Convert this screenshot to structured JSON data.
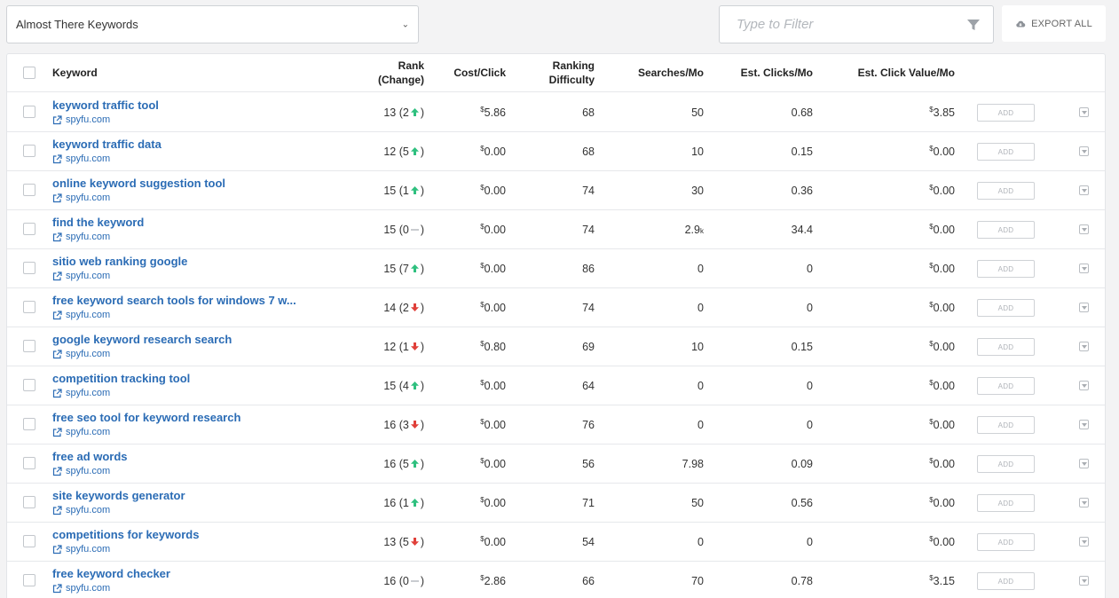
{
  "toolbar": {
    "dropdown_value": "Almost There Keywords",
    "filter_placeholder": "Type to Filter",
    "export_label": "EXPORT ALL"
  },
  "columns": {
    "keyword": "Keyword",
    "rank_line1": "Rank",
    "rank_line2": "(Change)",
    "cost": "Cost/Click",
    "difficulty_line1": "Ranking",
    "difficulty_line2": "Difficulty",
    "searches": "Searches/Mo",
    "clicks": "Est. Clicks/Mo",
    "click_value": "Est. Click Value/Mo"
  },
  "add_label": "ADD",
  "currency_symbol": "$",
  "colors": {
    "up": "#2fc07f",
    "down": "#e0403a",
    "link": "#2b6cb5"
  },
  "rows": [
    {
      "keyword": "keyword traffic tool",
      "site": "spyfu.com",
      "rank": "13",
      "change": "2",
      "dir": "up",
      "cost": "5.86",
      "difficulty": "68",
      "searches": "50",
      "searches_suffix": "",
      "clicks": "0.68",
      "value": "3.85"
    },
    {
      "keyword": "keyword traffic data",
      "site": "spyfu.com",
      "rank": "12",
      "change": "5",
      "dir": "up",
      "cost": "0.00",
      "difficulty": "68",
      "searches": "10",
      "searches_suffix": "",
      "clicks": "0.15",
      "value": "0.00"
    },
    {
      "keyword": "online keyword suggestion tool",
      "site": "spyfu.com",
      "rank": "15",
      "change": "1",
      "dir": "up",
      "cost": "0.00",
      "difficulty": "74",
      "searches": "30",
      "searches_suffix": "",
      "clicks": "0.36",
      "value": "0.00"
    },
    {
      "keyword": "find the keyword",
      "site": "spyfu.com",
      "rank": "15",
      "change": "0",
      "dir": "none",
      "cost": "0.00",
      "difficulty": "74",
      "searches": "2.9",
      "searches_suffix": "k",
      "clicks": "34.4",
      "value": "0.00"
    },
    {
      "keyword": "sitio web ranking google",
      "site": "spyfu.com",
      "rank": "15",
      "change": "7",
      "dir": "up",
      "cost": "0.00",
      "difficulty": "86",
      "searches": "0",
      "searches_suffix": "",
      "clicks": "0",
      "value": "0.00"
    },
    {
      "keyword": "free keyword search tools for windows 7 w...",
      "site": "spyfu.com",
      "rank": "14",
      "change": "2",
      "dir": "down",
      "cost": "0.00",
      "difficulty": "74",
      "searches": "0",
      "searches_suffix": "",
      "clicks": "0",
      "value": "0.00"
    },
    {
      "keyword": "google keyword research search",
      "site": "spyfu.com",
      "rank": "12",
      "change": "1",
      "dir": "down",
      "cost": "0.80",
      "difficulty": "69",
      "searches": "10",
      "searches_suffix": "",
      "clicks": "0.15",
      "value": "0.00"
    },
    {
      "keyword": "competition tracking tool",
      "site": "spyfu.com",
      "rank": "15",
      "change": "4",
      "dir": "up",
      "cost": "0.00",
      "difficulty": "64",
      "searches": "0",
      "searches_suffix": "",
      "clicks": "0",
      "value": "0.00"
    },
    {
      "keyword": "free seo tool for keyword research",
      "site": "spyfu.com",
      "rank": "16",
      "change": "3",
      "dir": "down",
      "cost": "0.00",
      "difficulty": "76",
      "searches": "0",
      "searches_suffix": "",
      "clicks": "0",
      "value": "0.00"
    },
    {
      "keyword": "free ad words",
      "site": "spyfu.com",
      "rank": "16",
      "change": "5",
      "dir": "up",
      "cost": "0.00",
      "difficulty": "56",
      "searches": "7.98",
      "searches_suffix": "",
      "clicks": "0.09",
      "value": "0.00"
    },
    {
      "keyword": "site keywords generator",
      "site": "spyfu.com",
      "rank": "16",
      "change": "1",
      "dir": "up",
      "cost": "0.00",
      "difficulty": "71",
      "searches": "50",
      "searches_suffix": "",
      "clicks": "0.56",
      "value": "0.00"
    },
    {
      "keyword": "competitions for keywords",
      "site": "spyfu.com",
      "rank": "13",
      "change": "5",
      "dir": "down",
      "cost": "0.00",
      "difficulty": "54",
      "searches": "0",
      "searches_suffix": "",
      "clicks": "0",
      "value": "0.00"
    },
    {
      "keyword": "free keyword checker",
      "site": "spyfu.com",
      "rank": "16",
      "change": "0",
      "dir": "none",
      "cost": "2.86",
      "difficulty": "66",
      "searches": "70",
      "searches_suffix": "",
      "clicks": "0.78",
      "value": "3.15"
    }
  ]
}
